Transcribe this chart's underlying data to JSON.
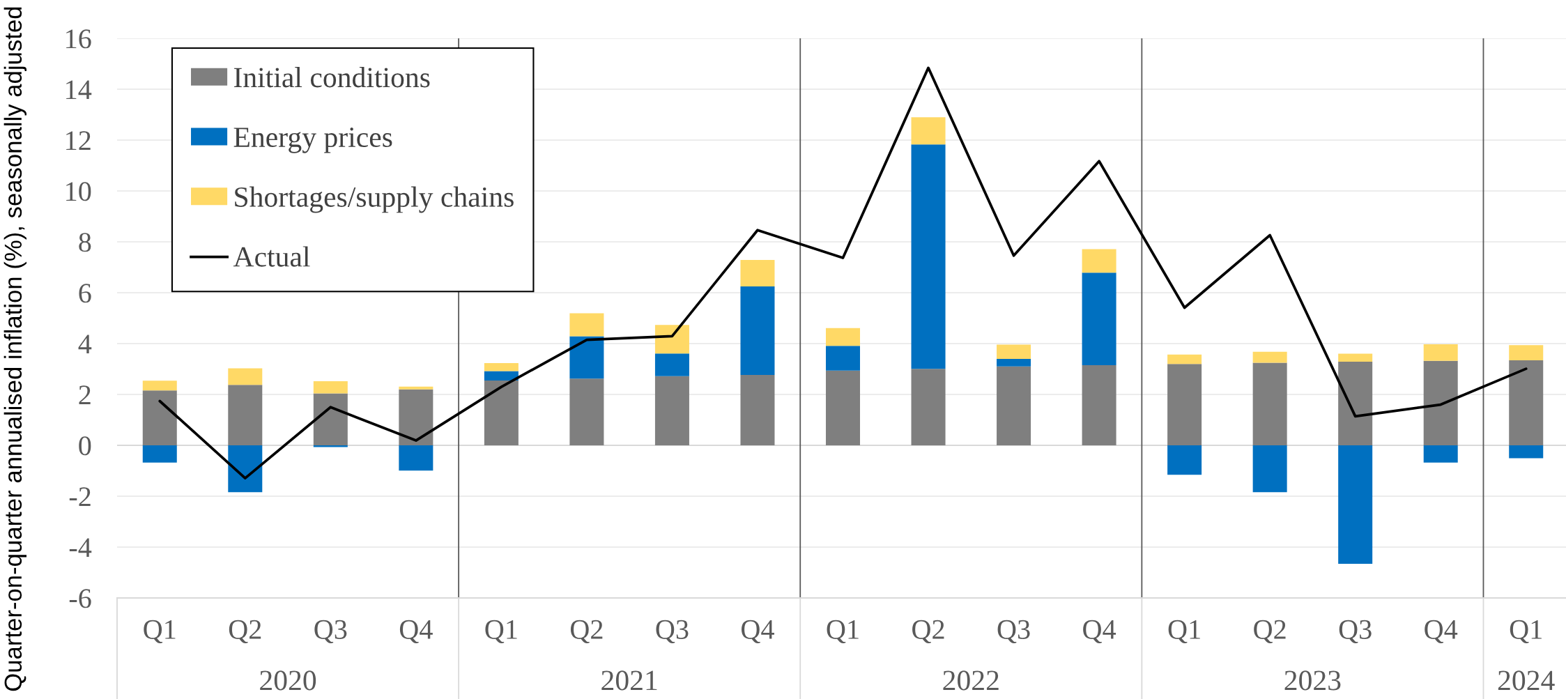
{
  "chart_data": {
    "type": "bar",
    "ylabel": "Quarter-on-quarter annualised inflation (%), seasonally adjusted",
    "categories": [
      "Q1",
      "Q2",
      "Q3",
      "Q4",
      "Q1",
      "Q2",
      "Q3",
      "Q4",
      "Q1",
      "Q2",
      "Q3",
      "Q4",
      "Q1",
      "Q2",
      "Q3",
      "Q4",
      "Q1"
    ],
    "stacked": true,
    "series": [
      {
        "name": "Initial conditions",
        "color": "#7f7f7f",
        "values": [
          2.16,
          2.38,
          2.04,
          2.2,
          2.55,
          2.62,
          2.72,
          2.77,
          2.94,
          3.01,
          3.1,
          3.15,
          3.2,
          3.25,
          3.29,
          3.32,
          3.34
        ]
      },
      {
        "name": "Energy prices",
        "color": "#0070c0",
        "values": [
          -0.68,
          -1.84,
          -0.07,
          -0.99,
          0.37,
          1.67,
          0.89,
          3.48,
          0.97,
          8.82,
          0.3,
          3.64,
          -1.16,
          -1.84,
          -4.66,
          -0.68,
          -0.51
        ]
      },
      {
        "name": "Shortages/supply chains",
        "color": "#ffd966",
        "values": [
          0.38,
          0.65,
          0.48,
          0.11,
          0.31,
          0.9,
          1.12,
          1.04,
          0.7,
          1.07,
          0.56,
          0.92,
          0.37,
          0.43,
          0.31,
          0.65,
          0.6
        ]
      },
      {
        "name": "Actual",
        "type": "line",
        "color": "#000000",
        "values": [
          1.74,
          -1.29,
          1.5,
          0.19,
          2.3,
          4.15,
          4.29,
          8.46,
          7.37,
          14.84,
          7.46,
          11.17,
          5.41,
          8.26,
          1.14,
          1.6,
          3.01
        ]
      }
    ],
    "ylim": [
      -6,
      16
    ],
    "yticks": [
      -6,
      -4,
      -2,
      0,
      2,
      4,
      6,
      8,
      10,
      12,
      14,
      16
    ],
    "grid": "y",
    "legend": "top left",
    "annotations": [
      "2020",
      "2021",
      "2022",
      "2023",
      "2024"
    ]
  }
}
